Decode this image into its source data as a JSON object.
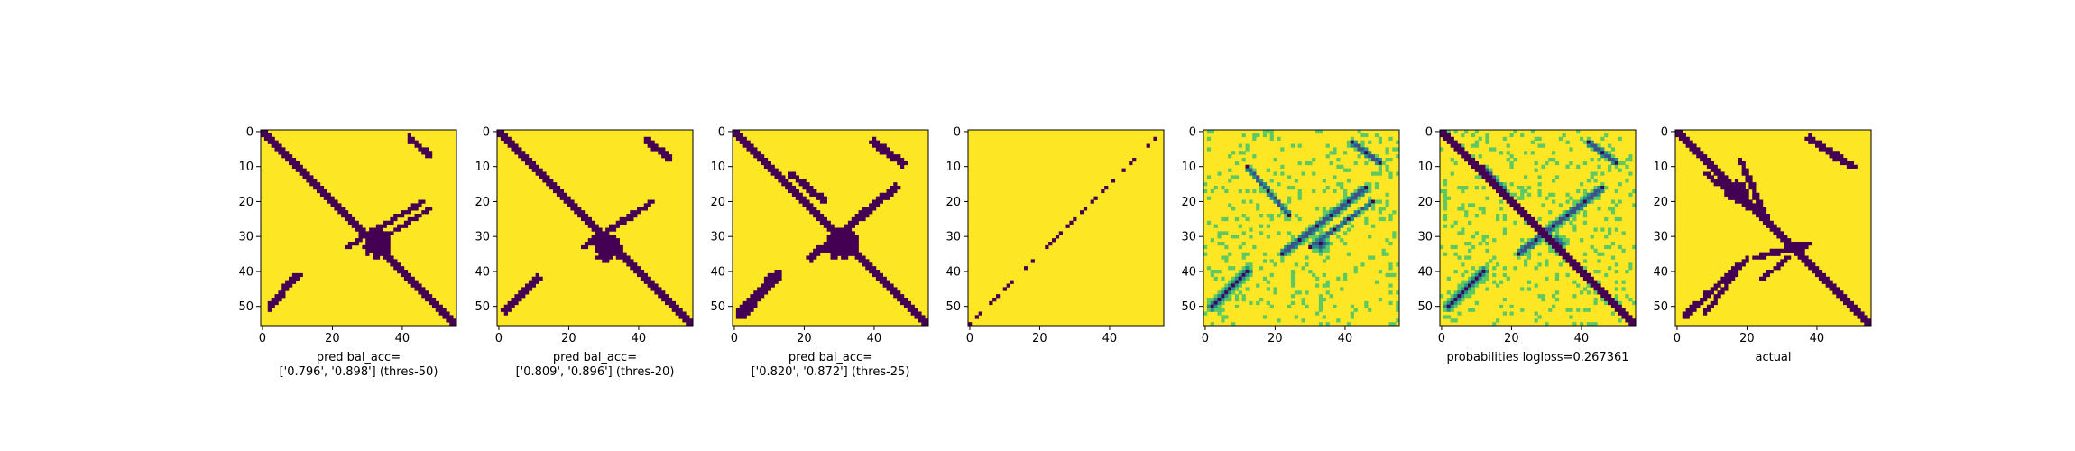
{
  "chart_data": [
    {
      "type": "heatmap",
      "matrix_size": 56,
      "xticks": [
        "0",
        "20",
        "40"
      ],
      "yticks": [
        "0",
        "10",
        "20",
        "30",
        "40",
        "50"
      ],
      "pattern": "binary",
      "features": [
        {
          "kind": "diag",
          "width": 1.6
        },
        {
          "kind": "blob",
          "cx": 33,
          "cy": 32,
          "r": 5
        },
        {
          "kind": "band",
          "from": [
            42,
            2
          ],
          "to": [
            48,
            7
          ],
          "width": 1.2
        },
        {
          "kind": "band",
          "from": [
            24,
            33
          ],
          "to": [
            46,
            20
          ],
          "width": 1.0
        },
        {
          "kind": "band",
          "from": [
            2,
            50
          ],
          "to": [
            10,
            41
          ],
          "width": 1.3
        },
        {
          "kind": "band",
          "from": [
            30,
            33
          ],
          "to": [
            48,
            22
          ],
          "width": 0.8
        }
      ],
      "label_lines": [
        "pred bal_acc=",
        "['0.796', '0.898'] (thres-50)"
      ]
    },
    {
      "type": "heatmap",
      "matrix_size": 56,
      "xticks": [
        "0",
        "20",
        "40"
      ],
      "yticks": [
        "0",
        "10",
        "20",
        "30",
        "40",
        "50"
      ],
      "pattern": "binary",
      "features": [
        {
          "kind": "diag",
          "width": 1.6
        },
        {
          "kind": "blob",
          "cx": 31,
          "cy": 33,
          "r": 5
        },
        {
          "kind": "band",
          "from": [
            42,
            2
          ],
          "to": [
            49,
            8
          ],
          "width": 1.2
        },
        {
          "kind": "band",
          "from": [
            24,
            33
          ],
          "to": [
            44,
            20
          ],
          "width": 1.1
        },
        {
          "kind": "band",
          "from": [
            2,
            51
          ],
          "to": [
            11,
            42
          ],
          "width": 1.6
        }
      ],
      "label_lines": [
        "pred bal_acc=",
        "['0.809', '0.896'] (thres-20)"
      ]
    },
    {
      "type": "heatmap",
      "matrix_size": 56,
      "xticks": [
        "0",
        "20",
        "40"
      ],
      "yticks": [
        "0",
        "10",
        "20",
        "30",
        "40",
        "50"
      ],
      "pattern": "binary",
      "features": [
        {
          "kind": "diag",
          "width": 1.6
        },
        {
          "kind": "blob",
          "cx": 31,
          "cy": 32,
          "r": 6
        },
        {
          "kind": "band",
          "from": [
            40,
            3
          ],
          "to": [
            48,
            9
          ],
          "width": 1.5
        },
        {
          "kind": "band",
          "from": [
            22,
            36
          ],
          "to": [
            46,
            16
          ],
          "width": 1.5
        },
        {
          "kind": "band",
          "from": [
            2,
            52
          ],
          "to": [
            12,
            41
          ],
          "width": 2.0
        },
        {
          "kind": "band",
          "from": [
            16,
            12
          ],
          "to": [
            26,
            20
          ],
          "width": 1.2
        }
      ],
      "label_lines": [
        "pred bal_acc=",
        "['0.820', '0.872'] (thres-25)"
      ]
    },
    {
      "type": "heatmap",
      "matrix_size": 56,
      "xticks": [
        "0",
        "20",
        "40"
      ],
      "yticks": [
        "0",
        "10",
        "20",
        "30",
        "40",
        "50"
      ],
      "pattern": "sparse-antidiagonal",
      "features": [],
      "label_lines": []
    },
    {
      "type": "heatmap",
      "matrix_size": 56,
      "xticks": [
        "0",
        "20",
        "40"
      ],
      "yticks": [
        "0",
        "10",
        "20",
        "30",
        "40",
        "50"
      ],
      "pattern": "probability",
      "features": [
        {
          "kind": "blob",
          "cx": 33,
          "cy": 32,
          "r": 4
        },
        {
          "kind": "band",
          "from": [
            42,
            3
          ],
          "to": [
            50,
            9
          ],
          "width": 1.5
        },
        {
          "kind": "band",
          "from": [
            22,
            35
          ],
          "to": [
            46,
            16
          ],
          "width": 1.8
        },
        {
          "kind": "band",
          "from": [
            2,
            50
          ],
          "to": [
            12,
            40
          ],
          "width": 2.0
        },
        {
          "kind": "band",
          "from": [
            12,
            10
          ],
          "to": [
            24,
            24
          ],
          "width": 1.2
        },
        {
          "kind": "band",
          "from": [
            30,
            33
          ],
          "to": [
            48,
            20
          ],
          "width": 1.2
        }
      ],
      "label_lines": []
    },
    {
      "type": "heatmap",
      "matrix_size": 56,
      "xticks": [
        "0",
        "20",
        "40"
      ],
      "yticks": [
        "0",
        "10",
        "20",
        "30",
        "40",
        "50"
      ],
      "pattern": "probability-diag",
      "features": [
        {
          "kind": "diag",
          "width": 1.6
        },
        {
          "kind": "blob",
          "cx": 33,
          "cy": 32,
          "r": 4
        },
        {
          "kind": "band",
          "from": [
            42,
            3
          ],
          "to": [
            50,
            9
          ],
          "width": 1.5
        },
        {
          "kind": "band",
          "from": [
            22,
            35
          ],
          "to": [
            46,
            16
          ],
          "width": 1.8
        },
        {
          "kind": "band",
          "from": [
            2,
            50
          ],
          "to": [
            12,
            40
          ],
          "width": 2.0
        },
        {
          "kind": "band",
          "from": [
            12,
            10
          ],
          "to": [
            24,
            24
          ],
          "width": 1.2
        }
      ],
      "label_lines": [
        "probabilities logloss=0.267361"
      ]
    },
    {
      "type": "heatmap",
      "matrix_size": 56,
      "xticks": [
        "0",
        "20",
        "40"
      ],
      "yticks": [
        "0",
        "10",
        "20",
        "30",
        "40",
        "50"
      ],
      "pattern": "binary",
      "features": [
        {
          "kind": "diag",
          "width": 1.6
        },
        {
          "kind": "blob",
          "cx": 17,
          "cy": 17,
          "r": 4
        },
        {
          "kind": "blob",
          "cx": 35,
          "cy": 33,
          "r": 2
        },
        {
          "kind": "band",
          "from": [
            38,
            2
          ],
          "to": [
            50,
            10
          ],
          "width": 1.4
        },
        {
          "kind": "band",
          "from": [
            8,
            12
          ],
          "to": [
            24,
            24
          ],
          "width": 1.0
        },
        {
          "kind": "band",
          "from": [
            18,
            8
          ],
          "to": [
            26,
            26
          ],
          "width": 1.0
        },
        {
          "kind": "band",
          "from": [
            2,
            53
          ],
          "to": [
            18,
            38
          ],
          "width": 1.2
        },
        {
          "kind": "band",
          "from": [
            8,
            52
          ],
          "to": [
            20,
            36
          ],
          "width": 0.9
        },
        {
          "kind": "band",
          "from": [
            22,
            36
          ],
          "to": [
            38,
            32
          ],
          "width": 1.0
        },
        {
          "kind": "band",
          "from": [
            24,
            42
          ],
          "to": [
            32,
            36
          ],
          "width": 0.8
        }
      ],
      "label_lines": [
        "actual"
      ]
    }
  ],
  "colors": {
    "background": "#fde725",
    "foreground": "#440154",
    "mid_1": "#3b528b",
    "mid_2": "#21918c",
    "mid_3": "#5ec962",
    "axis": "#000000"
  }
}
